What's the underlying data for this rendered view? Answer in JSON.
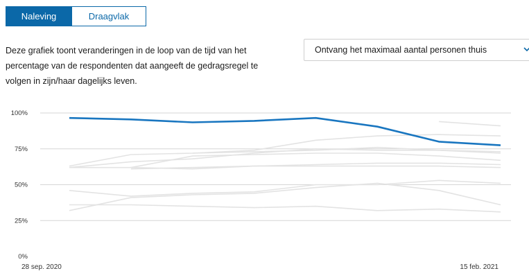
{
  "tabs": [
    {
      "label": "Naleving",
      "active": true
    },
    {
      "label": "Draagvlak",
      "active": false
    }
  ],
  "description": "Deze grafiek toont veranderingen in de loop van de tijd van het percentage van de respondenten dat aangeeft de gedragsregel te volgen in zijn/haar dagelijks leven.",
  "select": {
    "value": "Ontvang het maximaal aantal personen thuis",
    "icon": "chevron-down-icon"
  },
  "colors": {
    "accent": "#0b68a8",
    "highlight_line": "#1976c0",
    "background_lines": "#e3e3e3",
    "grid": "#d6d6d6"
  },
  "chart_data": {
    "type": "line",
    "y_ticks": [
      "100%",
      "75%",
      "50%",
      "25%",
      "0%"
    ],
    "ylim": [
      0,
      100
    ],
    "x_labels": {
      "start": "28 sep. 2020",
      "end": "15 feb. 2021"
    },
    "x": [
      0,
      1,
      2,
      3,
      4,
      5,
      6,
      7
    ],
    "highlight_series": {
      "values": [
        96.5,
        95.5,
        93.5,
        94.5,
        96.5,
        90.5,
        80,
        77.5
      ]
    },
    "background_series": [
      {
        "values": [
          63,
          71,
          72,
          74,
          81,
          84,
          85,
          84
        ]
      },
      {
        "values": [
          62,
          66,
          68,
          72,
          75,
          74,
          74,
          72
        ]
      },
      {
        "values": [
          null,
          62,
          70,
          71,
          72,
          72,
          70,
          67
        ]
      },
      {
        "values": [
          62,
          62,
          61,
          63,
          64,
          65,
          65,
          64
        ]
      },
      {
        "values": [
          null,
          61,
          62,
          63,
          63,
          63,
          63,
          62
        ]
      },
      {
        "values": [
          null,
          null,
          72,
          73,
          74,
          76,
          74,
          73
        ]
      },
      {
        "values": [
          null,
          null,
          null,
          null,
          null,
          null,
          94,
          91
        ]
      },
      {
        "values": [
          46,
          42,
          44,
          45,
          50,
          50,
          53,
          51
        ]
      },
      {
        "values": [
          32,
          41,
          43,
          44,
          48,
          51,
          46,
          36
        ]
      },
      {
        "values": [
          36,
          36,
          35,
          34,
          35,
          32,
          33,
          31
        ]
      }
    ]
  }
}
